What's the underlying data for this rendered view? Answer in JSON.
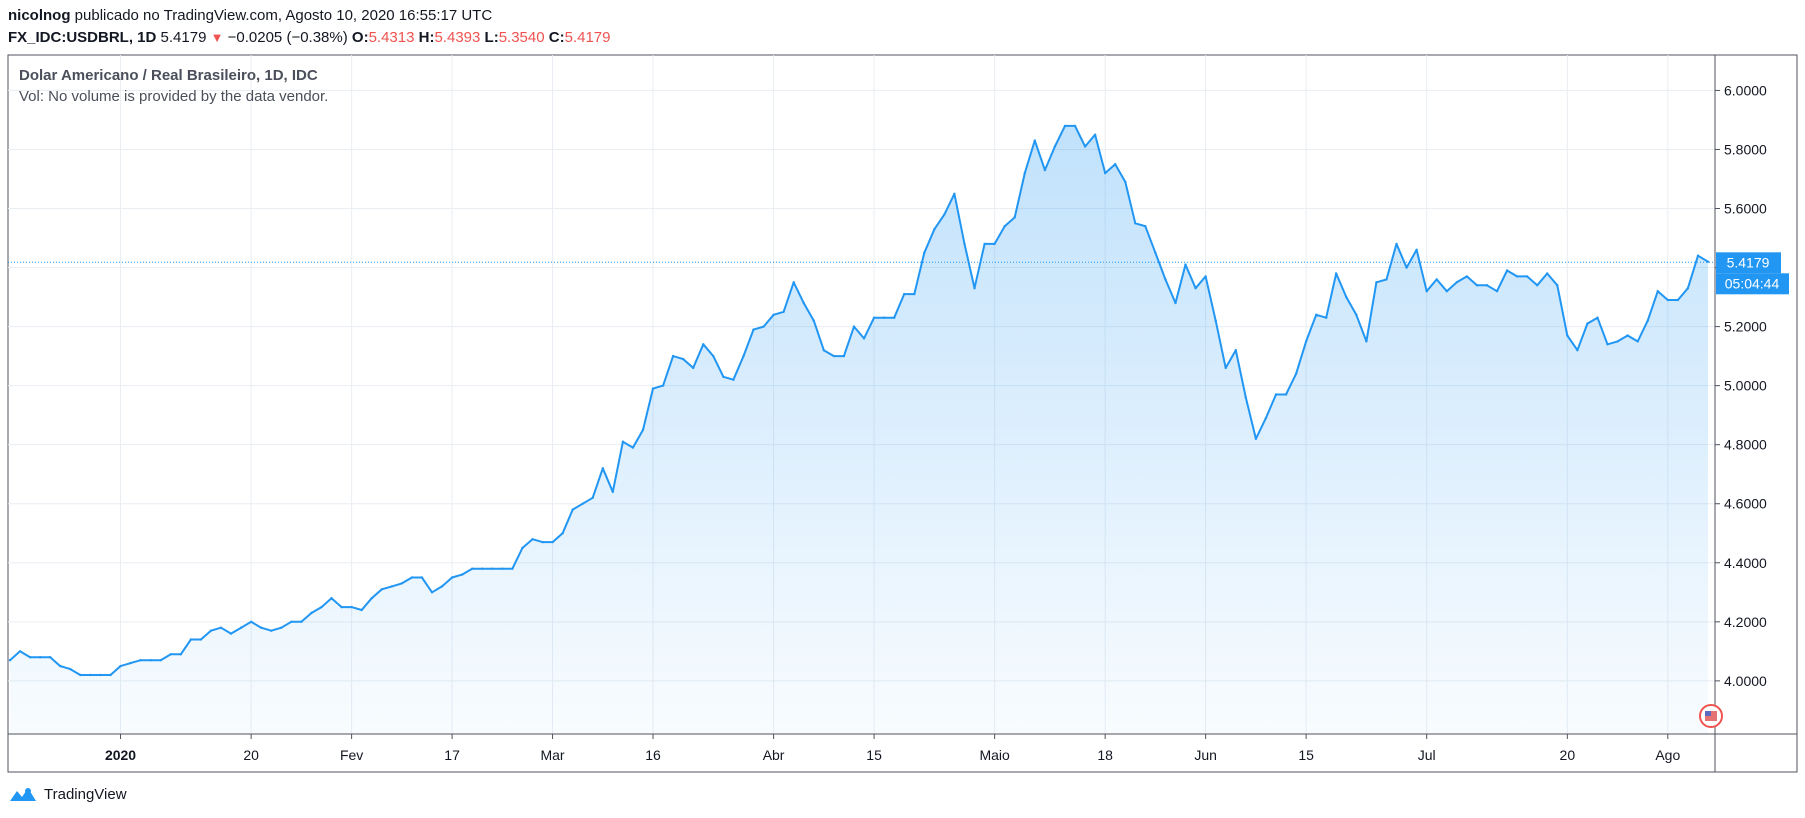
{
  "header": {
    "user": "nicolnog",
    "published_text": "publicado no TradingView.com, Agosto 10, 2020 16:55:17 UTC",
    "symbol": "FX_IDC:USDBRL, 1D",
    "last": "5.4179",
    "change": "−0.0205 (−0.38%)",
    "o_label": "O:",
    "o_value": "5.4313",
    "h_label": "H:",
    "h_value": "5.4393",
    "l_label": "L:",
    "l_value": "5.3540",
    "c_label": "C:",
    "c_value": "5.4179"
  },
  "legend": {
    "title": "Dolar Americano / Real Brasileiro, 1D, IDC",
    "volume_note": "Vol: No volume is provided by the data vendor."
  },
  "price_badge": {
    "price": "5.4179",
    "countdown": "05:04:44"
  },
  "footer": {
    "brand": "TradingView"
  },
  "colors": {
    "line": "#2196f3",
    "badge": "#2196f3",
    "down": "#ef5350"
  },
  "chart_data": {
    "type": "area",
    "y_ticks": [
      "6.0000",
      "5.8000",
      "5.6000",
      "5.4000",
      "5.2000",
      "5.0000",
      "4.8000",
      "4.6000",
      "4.4000",
      "4.2000",
      "4.0000"
    ],
    "ylim": [
      3.82,
      6.12
    ],
    "x_ticks": [
      {
        "label": "2020",
        "index": 11,
        "bold": true
      },
      {
        "label": "20",
        "index": 24
      },
      {
        "label": "Fev",
        "index": 34
      },
      {
        "label": "17",
        "index": 44
      },
      {
        "label": "Mar",
        "index": 54
      },
      {
        "label": "16",
        "index": 64
      },
      {
        "label": "Abr",
        "index": 76
      },
      {
        "label": "15",
        "index": 86
      },
      {
        "label": "Maio",
        "index": 98
      },
      {
        "label": "18",
        "index": 109
      },
      {
        "label": "Jun",
        "index": 119
      },
      {
        "label": "15",
        "index": 129
      },
      {
        "label": "Jul",
        "index": 141
      },
      {
        "label": "20",
        "index": 155
      },
      {
        "label": "Ago",
        "index": 165
      }
    ],
    "x_count": 170,
    "grid": true,
    "last_price": 5.4179,
    "values": [
      4.07,
      4.1,
      4.08,
      4.08,
      4.08,
      4.05,
      4.04,
      4.02,
      4.02,
      4.02,
      4.02,
      4.05,
      4.06,
      4.07,
      4.07,
      4.07,
      4.09,
      4.09,
      4.14,
      4.14,
      4.17,
      4.18,
      4.16,
      4.18,
      4.2,
      4.18,
      4.17,
      4.18,
      4.2,
      4.2,
      4.23,
      4.25,
      4.28,
      4.25,
      4.25,
      4.24,
      4.28,
      4.31,
      4.32,
      4.33,
      4.35,
      4.35,
      4.3,
      4.32,
      4.35,
      4.36,
      4.38,
      4.38,
      4.38,
      4.38,
      4.38,
      4.45,
      4.48,
      4.47,
      4.47,
      4.5,
      4.58,
      4.6,
      4.62,
      4.72,
      4.64,
      4.81,
      4.79,
      4.85,
      4.99,
      5.0,
      5.1,
      5.09,
      5.06,
      5.14,
      5.1,
      5.03,
      5.02,
      5.1,
      5.19,
      5.2,
      5.24,
      5.25,
      5.35,
      5.28,
      5.22,
      5.12,
      5.1,
      5.1,
      5.2,
      5.16,
      5.23,
      5.23,
      5.23,
      5.31,
      5.31,
      5.45,
      5.53,
      5.58,
      5.65,
      5.48,
      5.33,
      5.48,
      5.48,
      5.54,
      5.57,
      5.72,
      5.83,
      5.73,
      5.81,
      5.88,
      5.88,
      5.81,
      5.85,
      5.72,
      5.75,
      5.69,
      5.55,
      5.54,
      5.45,
      5.36,
      5.28,
      5.41,
      5.33,
      5.37,
      5.22,
      5.06,
      5.12,
      4.96,
      4.82,
      4.89,
      4.97,
      4.97,
      5.04,
      5.15,
      5.24,
      5.23,
      5.38,
      5.3,
      5.24,
      5.15,
      5.35,
      5.36,
      5.48,
      5.4,
      5.46,
      5.32,
      5.36,
      5.32,
      5.35,
      5.37,
      5.34,
      5.34,
      5.32,
      5.39,
      5.37,
      5.37,
      5.34,
      5.38,
      5.34,
      5.17,
      5.12,
      5.21,
      5.23,
      5.14,
      5.15,
      5.17,
      5.15,
      5.22,
      5.32,
      5.29,
      5.29,
      5.33,
      5.44,
      5.42
    ]
  }
}
